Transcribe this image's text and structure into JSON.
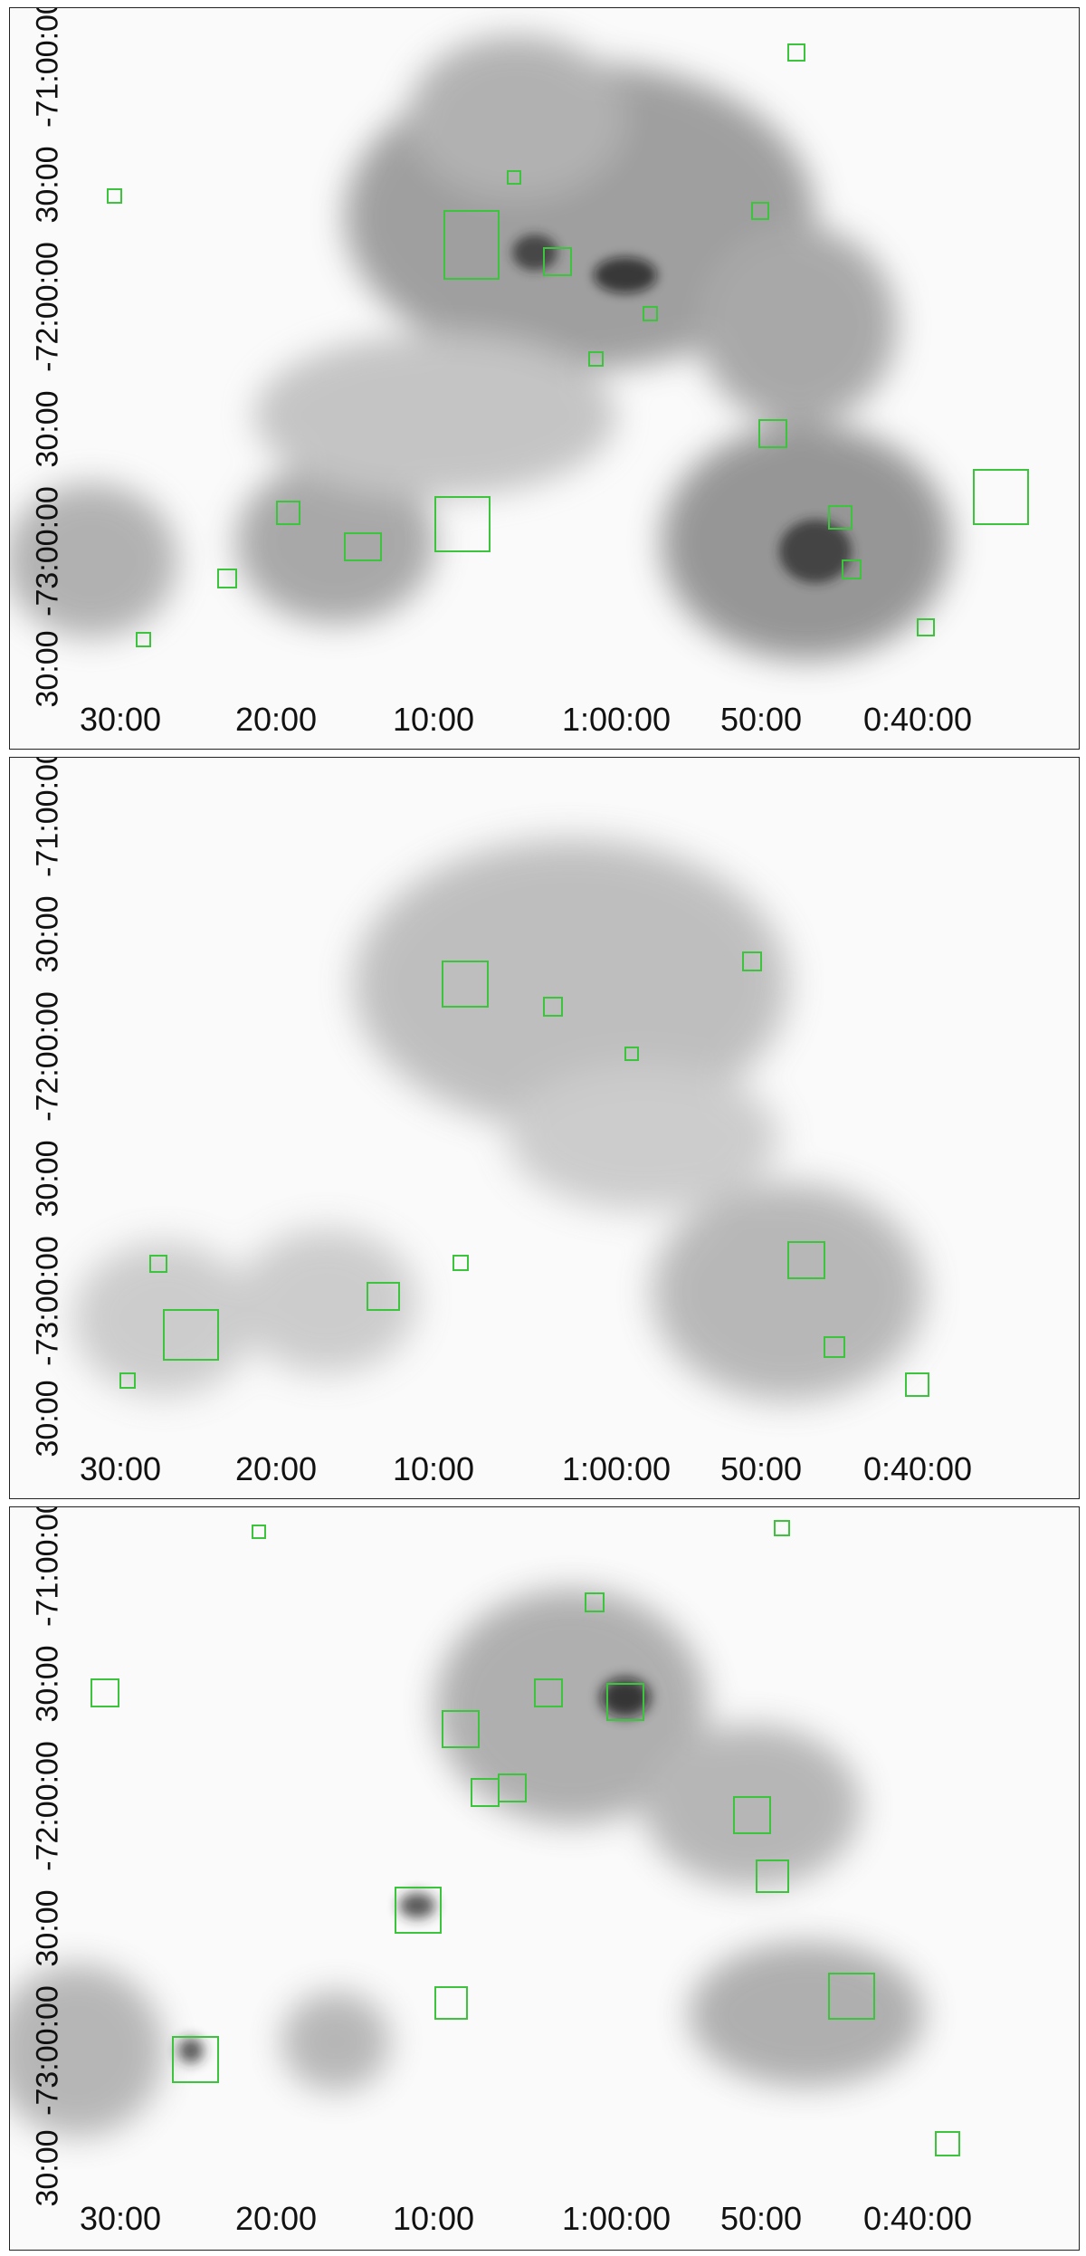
{
  "panels": [
    {
      "id": "top",
      "x_ticks": [
        "30:00",
        "20:00",
        "10:00",
        "1:00:00",
        "50:00",
        "0:40:00"
      ],
      "y_ticks": [
        "-71:00:00",
        "30:00",
        "-72:00:00",
        "30:00",
        "-73:00:00",
        "30:00"
      ]
    },
    {
      "id": "middle",
      "x_ticks": [
        "30:00",
        "20:00",
        "10:00",
        "1:00:00",
        "50:00",
        "0:40:00"
      ],
      "y_ticks": [
        "-71:00:00",
        "30:00",
        "-72:00:00",
        "30:00",
        "-73:00:00",
        "30:00"
      ]
    },
    {
      "id": "bottom",
      "x_ticks": [
        "30:00",
        "20:00",
        "10:00",
        "1:00:00",
        "50:00",
        "0:40:00"
      ],
      "y_ticks": [
        "-71:00:00",
        "30:00",
        "-72:00:00",
        "30:00",
        "-73:00:00",
        "30:00"
      ]
    }
  ],
  "colors": {
    "marker": "#3cc43c",
    "nebula": "#333333",
    "frame": "#222222"
  },
  "icons": [
    "region-marker-square"
  ]
}
